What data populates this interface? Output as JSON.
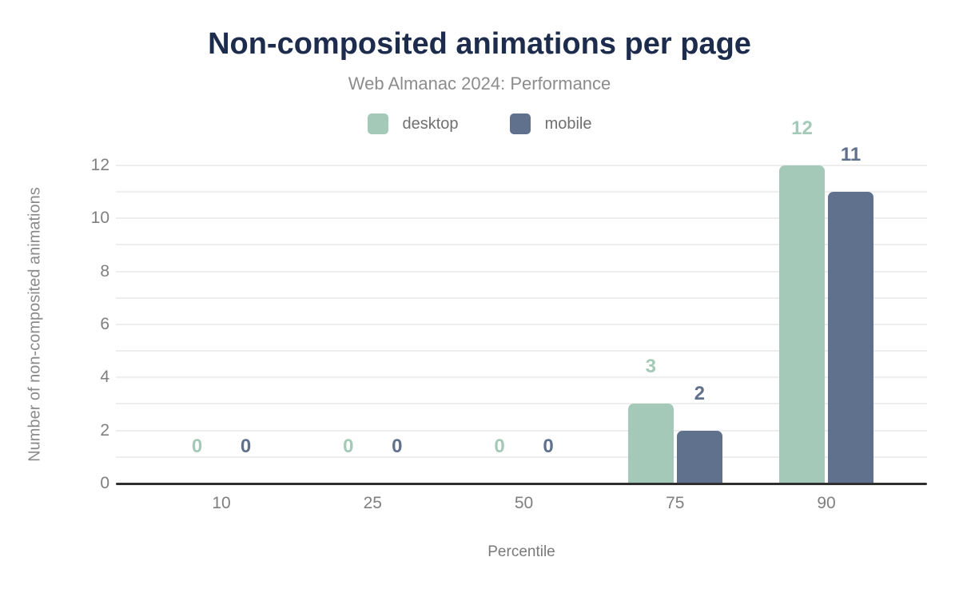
{
  "header": {
    "title": "Non-composited animations per page",
    "subtitle": "Web Almanac 2024: Performance"
  },
  "legend": [
    {
      "label": "desktop",
      "color": "#a5c9b8"
    },
    {
      "label": "mobile",
      "color": "#5f718c"
    }
  ],
  "chart_data": {
    "type": "bar",
    "title": "Non-composited animations per page",
    "subtitle": "Web Almanac 2024: Performance",
    "categories": [
      "10",
      "25",
      "50",
      "75",
      "90"
    ],
    "series": [
      {
        "name": "desktop",
        "color": "#a5c9b8",
        "values": [
          0,
          0,
          0,
          3,
          12
        ]
      },
      {
        "name": "mobile",
        "color": "#5f718c",
        "values": [
          0,
          0,
          0,
          2,
          11
        ]
      }
    ],
    "xlabel": "Percentile",
    "ylabel": "Number of non-composited animations",
    "ylim": [
      0,
      12
    ],
    "yticks": [
      0,
      2,
      4,
      6,
      8,
      10,
      12
    ],
    "grid": "horizontal, every 1 unit",
    "legend_position": "top",
    "value_labels": true,
    "colors": {
      "title": "#1d2b4d",
      "subtitle": "#8c8c8c",
      "axis_text": "#7f7f7f",
      "gridline": "#eeeeee",
      "axis_line": "#2f2f2f",
      "background": "#ffffff"
    }
  }
}
